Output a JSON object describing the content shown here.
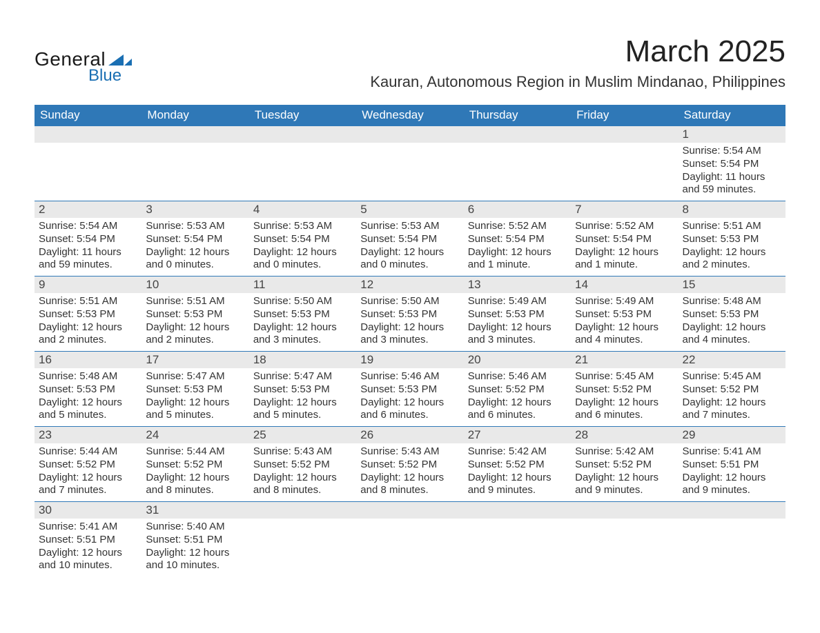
{
  "logo": {
    "text_top": "General",
    "text_bottom": "Blue",
    "accent_color": "#1a6fb3"
  },
  "header": {
    "month_title": "March 2025",
    "location": "Kauran, Autonomous Region in Muslim Mindanao, Philippines"
  },
  "calendar": {
    "header_bg": "#2f78b7",
    "header_fg": "#ffffff",
    "daynum_bg": "#e9e9e9",
    "border_color": "#2f78b7",
    "days_of_week": [
      "Sunday",
      "Monday",
      "Tuesday",
      "Wednesday",
      "Thursday",
      "Friday",
      "Saturday"
    ],
    "weeks": [
      [
        {
          "empty": true
        },
        {
          "empty": true
        },
        {
          "empty": true
        },
        {
          "empty": true
        },
        {
          "empty": true
        },
        {
          "empty": true
        },
        {
          "n": "1",
          "sunrise": "Sunrise: 5:54 AM",
          "sunset": "Sunset: 5:54 PM",
          "day1": "Daylight: 11 hours",
          "day2": "and 59 minutes."
        }
      ],
      [
        {
          "n": "2",
          "sunrise": "Sunrise: 5:54 AM",
          "sunset": "Sunset: 5:54 PM",
          "day1": "Daylight: 11 hours",
          "day2": "and 59 minutes."
        },
        {
          "n": "3",
          "sunrise": "Sunrise: 5:53 AM",
          "sunset": "Sunset: 5:54 PM",
          "day1": "Daylight: 12 hours",
          "day2": "and 0 minutes."
        },
        {
          "n": "4",
          "sunrise": "Sunrise: 5:53 AM",
          "sunset": "Sunset: 5:54 PM",
          "day1": "Daylight: 12 hours",
          "day2": "and 0 minutes."
        },
        {
          "n": "5",
          "sunrise": "Sunrise: 5:53 AM",
          "sunset": "Sunset: 5:54 PM",
          "day1": "Daylight: 12 hours",
          "day2": "and 0 minutes."
        },
        {
          "n": "6",
          "sunrise": "Sunrise: 5:52 AM",
          "sunset": "Sunset: 5:54 PM",
          "day1": "Daylight: 12 hours",
          "day2": "and 1 minute."
        },
        {
          "n": "7",
          "sunrise": "Sunrise: 5:52 AM",
          "sunset": "Sunset: 5:54 PM",
          "day1": "Daylight: 12 hours",
          "day2": "and 1 minute."
        },
        {
          "n": "8",
          "sunrise": "Sunrise: 5:51 AM",
          "sunset": "Sunset: 5:53 PM",
          "day1": "Daylight: 12 hours",
          "day2": "and 2 minutes."
        }
      ],
      [
        {
          "n": "9",
          "sunrise": "Sunrise: 5:51 AM",
          "sunset": "Sunset: 5:53 PM",
          "day1": "Daylight: 12 hours",
          "day2": "and 2 minutes."
        },
        {
          "n": "10",
          "sunrise": "Sunrise: 5:51 AM",
          "sunset": "Sunset: 5:53 PM",
          "day1": "Daylight: 12 hours",
          "day2": "and 2 minutes."
        },
        {
          "n": "11",
          "sunrise": "Sunrise: 5:50 AM",
          "sunset": "Sunset: 5:53 PM",
          "day1": "Daylight: 12 hours",
          "day2": "and 3 minutes."
        },
        {
          "n": "12",
          "sunrise": "Sunrise: 5:50 AM",
          "sunset": "Sunset: 5:53 PM",
          "day1": "Daylight: 12 hours",
          "day2": "and 3 minutes."
        },
        {
          "n": "13",
          "sunrise": "Sunrise: 5:49 AM",
          "sunset": "Sunset: 5:53 PM",
          "day1": "Daylight: 12 hours",
          "day2": "and 3 minutes."
        },
        {
          "n": "14",
          "sunrise": "Sunrise: 5:49 AM",
          "sunset": "Sunset: 5:53 PM",
          "day1": "Daylight: 12 hours",
          "day2": "and 4 minutes."
        },
        {
          "n": "15",
          "sunrise": "Sunrise: 5:48 AM",
          "sunset": "Sunset: 5:53 PM",
          "day1": "Daylight: 12 hours",
          "day2": "and 4 minutes."
        }
      ],
      [
        {
          "n": "16",
          "sunrise": "Sunrise: 5:48 AM",
          "sunset": "Sunset: 5:53 PM",
          "day1": "Daylight: 12 hours",
          "day2": "and 5 minutes."
        },
        {
          "n": "17",
          "sunrise": "Sunrise: 5:47 AM",
          "sunset": "Sunset: 5:53 PM",
          "day1": "Daylight: 12 hours",
          "day2": "and 5 minutes."
        },
        {
          "n": "18",
          "sunrise": "Sunrise: 5:47 AM",
          "sunset": "Sunset: 5:53 PM",
          "day1": "Daylight: 12 hours",
          "day2": "and 5 minutes."
        },
        {
          "n": "19",
          "sunrise": "Sunrise: 5:46 AM",
          "sunset": "Sunset: 5:53 PM",
          "day1": "Daylight: 12 hours",
          "day2": "and 6 minutes."
        },
        {
          "n": "20",
          "sunrise": "Sunrise: 5:46 AM",
          "sunset": "Sunset: 5:52 PM",
          "day1": "Daylight: 12 hours",
          "day2": "and 6 minutes."
        },
        {
          "n": "21",
          "sunrise": "Sunrise: 5:45 AM",
          "sunset": "Sunset: 5:52 PM",
          "day1": "Daylight: 12 hours",
          "day2": "and 6 minutes."
        },
        {
          "n": "22",
          "sunrise": "Sunrise: 5:45 AM",
          "sunset": "Sunset: 5:52 PM",
          "day1": "Daylight: 12 hours",
          "day2": "and 7 minutes."
        }
      ],
      [
        {
          "n": "23",
          "sunrise": "Sunrise: 5:44 AM",
          "sunset": "Sunset: 5:52 PM",
          "day1": "Daylight: 12 hours",
          "day2": "and 7 minutes."
        },
        {
          "n": "24",
          "sunrise": "Sunrise: 5:44 AM",
          "sunset": "Sunset: 5:52 PM",
          "day1": "Daylight: 12 hours",
          "day2": "and 8 minutes."
        },
        {
          "n": "25",
          "sunrise": "Sunrise: 5:43 AM",
          "sunset": "Sunset: 5:52 PM",
          "day1": "Daylight: 12 hours",
          "day2": "and 8 minutes."
        },
        {
          "n": "26",
          "sunrise": "Sunrise: 5:43 AM",
          "sunset": "Sunset: 5:52 PM",
          "day1": "Daylight: 12 hours",
          "day2": "and 8 minutes."
        },
        {
          "n": "27",
          "sunrise": "Sunrise: 5:42 AM",
          "sunset": "Sunset: 5:52 PM",
          "day1": "Daylight: 12 hours",
          "day2": "and 9 minutes."
        },
        {
          "n": "28",
          "sunrise": "Sunrise: 5:42 AM",
          "sunset": "Sunset: 5:52 PM",
          "day1": "Daylight: 12 hours",
          "day2": "and 9 minutes."
        },
        {
          "n": "29",
          "sunrise": "Sunrise: 5:41 AM",
          "sunset": "Sunset: 5:51 PM",
          "day1": "Daylight: 12 hours",
          "day2": "and 9 minutes."
        }
      ],
      [
        {
          "n": "30",
          "sunrise": "Sunrise: 5:41 AM",
          "sunset": "Sunset: 5:51 PM",
          "day1": "Daylight: 12 hours",
          "day2": "and 10 minutes."
        },
        {
          "n": "31",
          "sunrise": "Sunrise: 5:40 AM",
          "sunset": "Sunset: 5:51 PM",
          "day1": "Daylight: 12 hours",
          "day2": "and 10 minutes."
        },
        {
          "empty": true
        },
        {
          "empty": true
        },
        {
          "empty": true
        },
        {
          "empty": true
        },
        {
          "empty": true
        }
      ]
    ]
  }
}
